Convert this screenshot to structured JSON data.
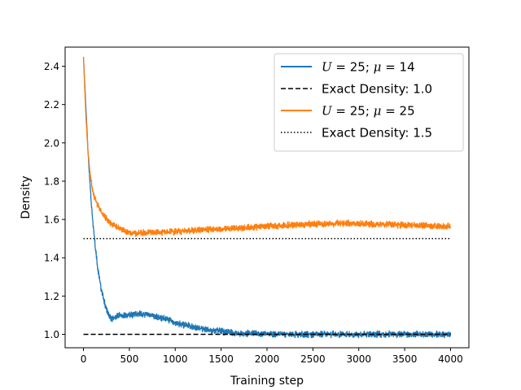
{
  "chart_data": {
    "type": "line",
    "title": "",
    "xlabel": "Training step",
    "ylabel": "Density",
    "xlim": [
      -200,
      4200
    ],
    "ylim": [
      0.93,
      2.5
    ],
    "xticks": [
      0,
      500,
      1000,
      1500,
      2000,
      2500,
      3000,
      3500,
      4000
    ],
    "xtick_labels": [
      "0",
      "500",
      "1000",
      "1500",
      "2000",
      "2500",
      "3000",
      "3500",
      "4000"
    ],
    "yticks": [
      1.0,
      1.2,
      1.4,
      1.6,
      1.8,
      2.0,
      2.2,
      2.4
    ],
    "ytick_labels": [
      "1.0",
      "1.2",
      "1.4",
      "1.6",
      "1.8",
      "2.0",
      "2.2",
      "2.4"
    ],
    "grid": false,
    "legend_position": "top-right",
    "series": [
      {
        "name": "U = 25; μ = 14",
        "legend_parts": [
          "U",
          " = 25; ",
          "μ",
          " = 14"
        ],
        "color": "#1f77b4",
        "style": "solid",
        "noise": 0.012,
        "points": [
          [
            0,
            2.45
          ],
          [
            25,
            2.2
          ],
          [
            50,
            1.95
          ],
          [
            75,
            1.75
          ],
          [
            100,
            1.6
          ],
          [
            130,
            1.45
          ],
          [
            160,
            1.33
          ],
          [
            200,
            1.22
          ],
          [
            250,
            1.13
          ],
          [
            300,
            1.08
          ],
          [
            400,
            1.1
          ],
          [
            500,
            1.1
          ],
          [
            600,
            1.11
          ],
          [
            700,
            1.1
          ],
          [
            800,
            1.09
          ],
          [
            900,
            1.08
          ],
          [
            1000,
            1.06
          ],
          [
            1100,
            1.05
          ],
          [
            1200,
            1.04
          ],
          [
            1300,
            1.03
          ],
          [
            1400,
            1.02
          ],
          [
            1500,
            1.015
          ],
          [
            1700,
            1.005
          ],
          [
            2000,
            1.002
          ],
          [
            2500,
            1.0
          ],
          [
            3000,
            1.0
          ],
          [
            3500,
            1.0
          ],
          [
            4000,
            1.0
          ]
        ]
      },
      {
        "name": "Exact Density: 1.0",
        "legend_parts": [
          "Exact Density: 1.0"
        ],
        "color": "#000000",
        "style": "dashed",
        "points": [
          [
            0,
            1.0
          ],
          [
            4000,
            1.0
          ]
        ]
      },
      {
        "name": "U = 25; μ = 25",
        "legend_parts": [
          "U",
          " = 25; ",
          "μ",
          " = 25"
        ],
        "color": "#ff7f0e",
        "style": "solid",
        "noise": 0.012,
        "points": [
          [
            0,
            2.45
          ],
          [
            25,
            2.15
          ],
          [
            50,
            1.95
          ],
          [
            75,
            1.83
          ],
          [
            100,
            1.75
          ],
          [
            130,
            1.7
          ],
          [
            170,
            1.66
          ],
          [
            220,
            1.62
          ],
          [
            300,
            1.58
          ],
          [
            400,
            1.55
          ],
          [
            500,
            1.53
          ],
          [
            700,
            1.53
          ],
          [
            900,
            1.535
          ],
          [
            1100,
            1.54
          ],
          [
            1300,
            1.545
          ],
          [
            1500,
            1.55
          ],
          [
            1700,
            1.555
          ],
          [
            2000,
            1.565
          ],
          [
            2500,
            1.575
          ],
          [
            2800,
            1.58
          ],
          [
            3000,
            1.578
          ],
          [
            3500,
            1.57
          ],
          [
            4000,
            1.565
          ]
        ]
      },
      {
        "name": "Exact Density: 1.5",
        "legend_parts": [
          "Exact Density: 1.5"
        ],
        "color": "#000000",
        "style": "dotted",
        "points": [
          [
            0,
            1.5
          ],
          [
            4000,
            1.5
          ]
        ]
      }
    ]
  }
}
